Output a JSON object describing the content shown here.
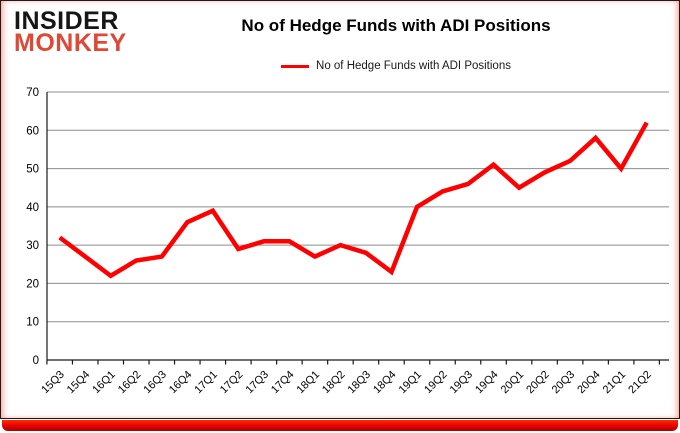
{
  "logo": {
    "line1": "INSIDER",
    "line2": "MONKEY"
  },
  "title": "No of Hedge Funds with ADI Positions",
  "legend": {
    "label": "No of Hedge Funds with ADI Positions",
    "color": "#ff0000"
  },
  "colors": {
    "line": "#ff0000",
    "grid": "#8c8c8c",
    "axis": "#1a1a1a",
    "logo_accent": "#e04836",
    "bottom_bar": "#ee0400",
    "text": "#000000"
  },
  "chart_data": {
    "type": "line",
    "title": "No of Hedge Funds with ADI Positions",
    "xlabel": "",
    "ylabel": "",
    "ylim": [
      0,
      70
    ],
    "yticks": [
      0,
      10,
      20,
      30,
      40,
      50,
      60,
      70
    ],
    "grid": true,
    "legend_position": "top",
    "categories": [
      "15Q3",
      "15Q4",
      "16Q1",
      "16Q2",
      "16Q3",
      "16Q4",
      "17Q1",
      "17Q2",
      "17Q3",
      "17Q4",
      "18Q1",
      "18Q2",
      "18Q3",
      "18Q4",
      "19Q1",
      "19Q2",
      "19Q3",
      "19Q4",
      "20Q1",
      "20Q2",
      "20Q3",
      "20Q4",
      "21Q1",
      "21Q2"
    ],
    "series": [
      {
        "name": "No of Hedge Funds with ADI Positions",
        "color": "#ff0000",
        "values": [
          32,
          27,
          22,
          26,
          27,
          36,
          39,
          29,
          31,
          31,
          27,
          30,
          28,
          23,
          40,
          44,
          46,
          51,
          45,
          49,
          52,
          58,
          50,
          62
        ]
      }
    ]
  }
}
